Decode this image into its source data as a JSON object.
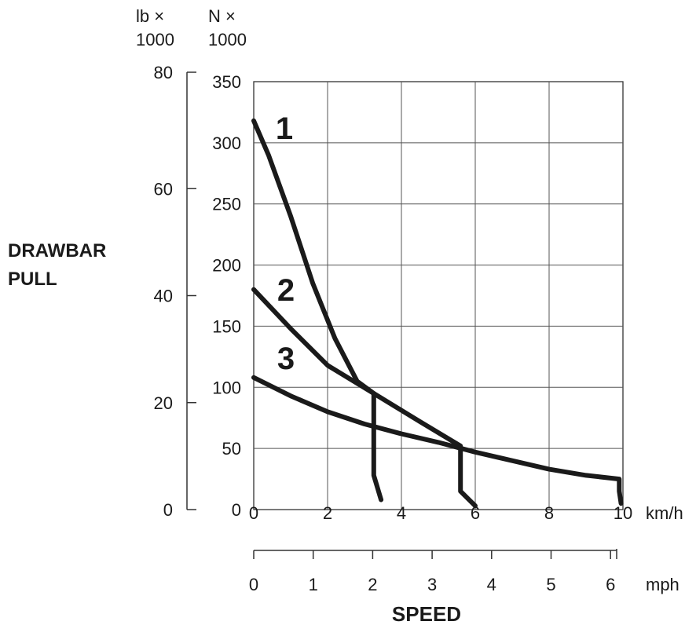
{
  "chart_data": {
    "type": "line",
    "title": "",
    "ylabel": [
      "DRAWBAR",
      "PULL"
    ],
    "xlabel": "SPEED",
    "y_axis_lb": {
      "unit": [
        "lb ×",
        "1000"
      ],
      "ticks": [
        "0",
        "20",
        "40",
        "60",
        "80"
      ],
      "range": [
        0,
        80
      ]
    },
    "y_axis_N": {
      "unit": [
        "N ×",
        "1000"
      ],
      "ticks": [
        "0",
        "50",
        "100",
        "150",
        "200",
        "250",
        "300",
        "350"
      ],
      "range": [
        0,
        350
      ]
    },
    "x_axis_kmh": {
      "unit": "km/h",
      "ticks": [
        "0",
        "2",
        "4",
        "6",
        "8",
        "10"
      ],
      "range": [
        0,
        10
      ]
    },
    "x_axis_mph": {
      "unit": "mph",
      "ticks": [
        "0",
        "1",
        "2",
        "3",
        "4",
        "5",
        "6"
      ],
      "range": [
        0,
        6.2
      ]
    },
    "grid": true,
    "series": [
      {
        "name": "1",
        "x_kmh": [
          0,
          0.4,
          1.0,
          1.6,
          2.2,
          2.8,
          3.25,
          3.25,
          3.25,
          3.45
        ],
        "y_N": [
          318,
          290,
          240,
          185,
          140,
          105,
          95,
          50,
          28,
          8
        ]
      },
      {
        "name": "2",
        "x_kmh": [
          0,
          1.0,
          2.0,
          3.25,
          4.5,
          5.6,
          5.6,
          5.6,
          6.0
        ],
        "y_N": [
          180,
          148,
          118,
          95,
          72,
          52,
          45,
          15,
          3
        ]
      },
      {
        "name": "3",
        "x_kmh": [
          0,
          1.0,
          2.0,
          3.0,
          4.0,
          5.0,
          6.0,
          7.0,
          8.0,
          9.0,
          9.9,
          9.9,
          9.95
        ],
        "y_N": [
          108,
          93,
          80,
          70,
          62,
          55,
          47,
          40,
          33,
          28,
          25,
          15,
          5
        ]
      }
    ]
  }
}
